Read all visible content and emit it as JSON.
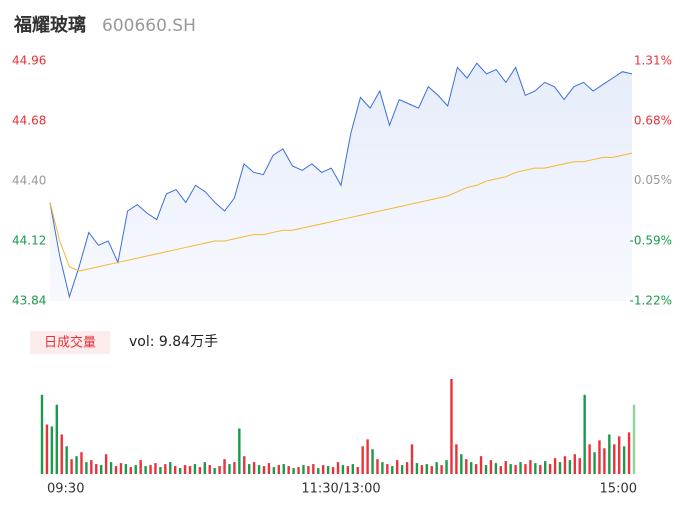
{
  "header": {
    "name": "福耀玻璃",
    "code": "600660.SH"
  },
  "chart_data": [
    {
      "type": "line",
      "x": [
        0,
        4,
        8,
        12,
        16,
        20,
        24,
        28,
        32,
        36,
        40,
        44,
        48,
        52,
        56,
        60,
        64,
        68,
        72,
        76,
        80,
        84,
        88,
        92,
        96,
        100,
        104,
        108,
        112,
        116,
        120,
        124,
        128,
        132,
        136,
        140,
        144,
        148,
        152,
        156,
        160,
        164,
        168,
        172,
        176,
        180,
        184,
        188,
        192,
        196,
        200,
        204,
        208,
        212,
        216,
        220,
        224,
        228,
        232,
        236,
        240
      ],
      "xlim": [
        0,
        240
      ],
      "xticks": [
        {
          "value": 0,
          "label": "09:30"
        },
        {
          "value": 120,
          "label": "11:30/13:00"
        },
        {
          "value": 240,
          "label": "15:00"
        }
      ],
      "ylim": [
        43.84,
        44.96
      ],
      "yticks": [
        44.96,
        44.68,
        44.4,
        44.12,
        43.84
      ],
      "ytick_labels": [
        "44.96",
        "44.68",
        "44.40",
        "44.12",
        "43.84"
      ],
      "y2lim": [
        -1.22,
        1.31
      ],
      "y2ticks": [
        {
          "value": 1.31,
          "label": "1.31%"
        },
        {
          "value": 0.68,
          "label": "0.68%"
        },
        {
          "value": 0.05,
          "label": "0.05%"
        },
        {
          "value": -0.59,
          "label": "-0.59%"
        },
        {
          "value": -1.22,
          "label": "-1.22%"
        }
      ],
      "tick_colors": [
        "#e8323c",
        "#e8323c",
        "#999999",
        "#1a9a4a",
        "#1a9a4a"
      ],
      "series": [
        {
          "name": "price",
          "color": "#3b6fd8",
          "values": [
            44.3,
            44.05,
            43.86,
            44.0,
            44.16,
            44.1,
            44.12,
            44.02,
            44.26,
            44.29,
            44.25,
            44.22,
            44.34,
            44.36,
            44.3,
            44.38,
            44.35,
            44.3,
            44.26,
            44.32,
            44.48,
            44.44,
            44.43,
            44.52,
            44.55,
            44.47,
            44.45,
            44.48,
            44.44,
            44.46,
            44.38,
            44.62,
            44.79,
            44.74,
            44.82,
            44.66,
            44.78,
            44.76,
            44.74,
            44.84,
            44.8,
            44.75,
            44.93,
            44.88,
            44.95,
            44.9,
            44.92,
            44.86,
            44.93,
            44.8,
            44.82,
            44.86,
            44.84,
            44.78,
            44.84,
            44.86,
            44.82,
            44.85,
            44.88,
            44.91,
            44.9
          ]
        },
        {
          "name": "average",
          "color": "#f5b731",
          "values": [
            44.3,
            44.12,
            44.0,
            43.98,
            43.99,
            44.0,
            44.01,
            44.02,
            44.03,
            44.04,
            44.05,
            44.06,
            44.07,
            44.08,
            44.09,
            44.1,
            44.11,
            44.12,
            44.12,
            44.13,
            44.14,
            44.15,
            44.15,
            44.16,
            44.17,
            44.17,
            44.18,
            44.19,
            44.2,
            44.21,
            44.22,
            44.23,
            44.24,
            44.25,
            44.26,
            44.27,
            44.28,
            44.29,
            44.3,
            44.31,
            44.32,
            44.33,
            44.35,
            44.37,
            44.38,
            44.4,
            44.41,
            44.42,
            44.44,
            44.45,
            44.46,
            44.46,
            44.47,
            44.48,
            44.49,
            44.49,
            44.5,
            44.51,
            44.51,
            44.52,
            44.53
          ]
        }
      ]
    },
    {
      "type": "bar",
      "title": "日成交量",
      "subtitle": "vol: 9.84万手",
      "x": [
        0,
        2,
        4,
        6,
        8,
        10,
        12,
        14,
        16,
        18,
        20,
        22,
        24,
        26,
        28,
        30,
        32,
        34,
        36,
        38,
        40,
        42,
        44,
        46,
        48,
        50,
        52,
        54,
        56,
        58,
        60,
        62,
        64,
        66,
        68,
        70,
        72,
        74,
        76,
        78,
        80,
        82,
        84,
        86,
        88,
        90,
        92,
        94,
        96,
        98,
        100,
        102,
        104,
        106,
        108,
        110,
        112,
        114,
        116,
        118,
        120,
        122,
        124,
        126,
        128,
        130,
        132,
        134,
        136,
        138,
        140,
        142,
        144,
        146,
        148,
        150,
        152,
        154,
        156,
        158,
        160,
        162,
        164,
        166,
        168,
        170,
        172,
        174,
        176,
        178,
        180,
        182,
        184,
        186,
        188,
        190,
        192,
        194,
        196,
        198,
        200,
        202,
        204,
        206,
        208,
        210,
        212,
        214,
        216,
        218,
        220,
        222,
        224,
        226,
        228,
        230,
        232,
        234,
        236,
        238,
        240
      ],
      "xlim": [
        0,
        240
      ],
      "ylim": [
        0,
        100
      ],
      "values": [
        80,
        50,
        48,
        70,
        40,
        28,
        15,
        18,
        22,
        12,
        14,
        10,
        9,
        20,
        12,
        8,
        11,
        10,
        7,
        9,
        14,
        8,
        9,
        11,
        7,
        10,
        12,
        8,
        6,
        9,
        8,
        10,
        7,
        12,
        9,
        6,
        8,
        15,
        10,
        12,
        46,
        18,
        10,
        12,
        9,
        8,
        11,
        7,
        9,
        10,
        8,
        6,
        7,
        9,
        8,
        10,
        6,
        9,
        8,
        7,
        12,
        9,
        8,
        10,
        7,
        28,
        35,
        25,
        15,
        12,
        10,
        8,
        14,
        9,
        12,
        30,
        11,
        9,
        10,
        8,
        12,
        9,
        14,
        96,
        30,
        20,
        15,
        12,
        10,
        18,
        9,
        14,
        11,
        8,
        13,
        10,
        9,
        12,
        10,
        14,
        11,
        9,
        13,
        10,
        16,
        12,
        18,
        14,
        20,
        16,
        80,
        30,
        22,
        34,
        26,
        40,
        30,
        38,
        28,
        42,
        70
      ],
      "colors": [
        "#1a9a4a",
        "#e8323c",
        "#1a9a4a",
        "#1a9a4a",
        "#e8323c",
        "#1a9a4a",
        "#e8323c",
        "#1a9a4a",
        "#e8323c",
        "#1a9a4a",
        "#e8323c",
        "#e8323c",
        "#1a9a4a",
        "#e8323c",
        "#1a9a4a",
        "#e8323c",
        "#e8323c",
        "#1a9a4a",
        "#e8323c",
        "#1a9a4a",
        "#e8323c",
        "#1a9a4a",
        "#e8323c",
        "#e8323c",
        "#1a9a4a",
        "#e8323c",
        "#1a9a4a",
        "#e8323c",
        "#1a9a4a",
        "#e8323c",
        "#e8323c",
        "#1a9a4a",
        "#e8323c",
        "#1a9a4a",
        "#e8323c",
        "#1a9a4a",
        "#e8323c",
        "#e8323c",
        "#1a9a4a",
        "#e8323c",
        "#1a9a4a",
        "#e8323c",
        "#1a9a4a",
        "#e8323c",
        "#1a9a4a",
        "#e8323c",
        "#e8323c",
        "#1a9a4a",
        "#e8323c",
        "#1a9a4a",
        "#e8323c",
        "#1a9a4a",
        "#e8323c",
        "#1a9a4a",
        "#e8323c",
        "#e8323c",
        "#1a9a4a",
        "#e8323c",
        "#1a9a4a",
        "#e8323c",
        "#e8323c",
        "#1a9a4a",
        "#e8323c",
        "#1a9a4a",
        "#e8323c",
        "#e8323c",
        "#e8323c",
        "#1a9a4a",
        "#e8323c",
        "#1a9a4a",
        "#e8323c",
        "#1a9a4a",
        "#e8323c",
        "#1a9a4a",
        "#e8323c",
        "#e8323c",
        "#1a9a4a",
        "#e8323c",
        "#1a9a4a",
        "#e8323c",
        "#1a9a4a",
        "#e8323c",
        "#1a9a4a",
        "#e8323c",
        "#e8323c",
        "#1a9a4a",
        "#e8323c",
        "#1a9a4a",
        "#e8323c",
        "#e8323c",
        "#1a9a4a",
        "#e8323c",
        "#1a9a4a",
        "#e8323c",
        "#e8323c",
        "#1a9a4a",
        "#e8323c",
        "#1a9a4a",
        "#e8323c",
        "#e8323c",
        "#1a9a4a",
        "#e8323c",
        "#1a9a4a",
        "#e8323c",
        "#e8323c",
        "#1a9a4a",
        "#e8323c",
        "#1a9a4a",
        "#e8323c",
        "#e8323c",
        "#1a9a4a",
        "#e8323c",
        "#1a9a4a",
        "#e8323c",
        "#e8323c",
        "#1a9a4a",
        "#e8323c",
        "#e8323c",
        "#1a9a4a",
        "#e8323c",
        "#8fd694"
      ]
    }
  ]
}
